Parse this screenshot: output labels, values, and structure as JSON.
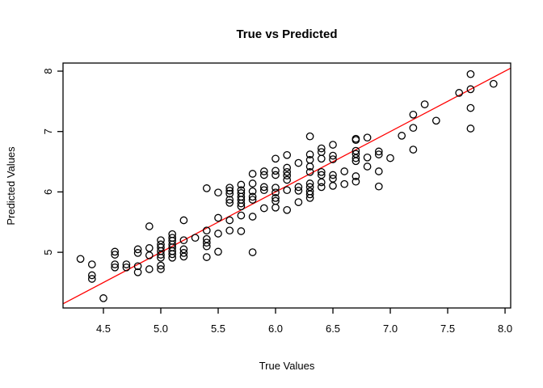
{
  "figure": {
    "background_color": "#FFFFFF",
    "foreground_color": "#000000",
    "accent_color": "#FF0000"
  },
  "chart_data": {
    "type": "scatter",
    "title": "True vs Predicted",
    "xlabel": "True Values",
    "ylabel": "Predicted Values",
    "xlim": [
      4.148,
      8.049
    ],
    "ylim": [
      4.078,
      8.134
    ],
    "x_ticks": [
      4.5,
      5.0,
      5.5,
      6.0,
      6.5,
      7.0,
      7.5,
      8.0
    ],
    "x_tick_labels": [
      "4.5",
      "5.0",
      "5.5",
      "6.0",
      "6.5",
      "7.0",
      "7.5",
      "8.0"
    ],
    "y_ticks": [
      5,
      6,
      7,
      8
    ],
    "y_tick_labels": [
      "5",
      "6",
      "7",
      "8"
    ],
    "grid": false,
    "legend": null,
    "marker": "open-circle",
    "marker_color": "#000000",
    "box": true,
    "reference_line": {
      "type": "identity",
      "slope": 1,
      "intercept": 0,
      "color": "#FF0000"
    },
    "points": [
      [
        4.3,
        4.89
      ],
      [
        4.4,
        4.8
      ],
      [
        4.4,
        4.62
      ],
      [
        4.4,
        4.56
      ],
      [
        4.5,
        4.24
      ],
      [
        4.6,
        5.01
      ],
      [
        4.6,
        4.96
      ],
      [
        4.6,
        4.8
      ],
      [
        4.6,
        4.75
      ],
      [
        4.7,
        4.8
      ],
      [
        4.7,
        4.75
      ],
      [
        4.8,
        5.05
      ],
      [
        4.8,
        4.99
      ],
      [
        4.8,
        4.77
      ],
      [
        4.8,
        4.67
      ],
      [
        4.9,
        5.43
      ],
      [
        4.9,
        5.07
      ],
      [
        4.9,
        4.95
      ],
      [
        4.9,
        4.72
      ],
      [
        5.0,
        5.2
      ],
      [
        5.0,
        5.13
      ],
      [
        5.0,
        5.08
      ],
      [
        5.0,
        5.02
      ],
      [
        5.0,
        4.96
      ],
      [
        5.0,
        4.91
      ],
      [
        5.0,
        4.78
      ],
      [
        5.0,
        4.72
      ],
      [
        5.1,
        5.3
      ],
      [
        5.1,
        5.24
      ],
      [
        5.1,
        5.19
      ],
      [
        5.1,
        5.13
      ],
      [
        5.1,
        5.08
      ],
      [
        5.1,
        5.02
      ],
      [
        5.1,
        4.97
      ],
      [
        5.1,
        4.91
      ],
      [
        5.2,
        5.53
      ],
      [
        5.2,
        5.2
      ],
      [
        5.2,
        5.05
      ],
      [
        5.2,
        4.99
      ],
      [
        5.2,
        4.93
      ],
      [
        5.3,
        5.24
      ],
      [
        5.4,
        6.06
      ],
      [
        5.4,
        5.36
      ],
      [
        5.4,
        5.22
      ],
      [
        5.4,
        5.16
      ],
      [
        5.4,
        5.1
      ],
      [
        5.4,
        4.92
      ],
      [
        5.5,
        5.99
      ],
      [
        5.5,
        5.57
      ],
      [
        5.5,
        5.31
      ],
      [
        5.5,
        5.01
      ],
      [
        5.6,
        6.07
      ],
      [
        5.6,
        6.02
      ],
      [
        5.6,
        5.97
      ],
      [
        5.6,
        5.87
      ],
      [
        5.6,
        5.82
      ],
      [
        5.6,
        5.53
      ],
      [
        5.6,
        5.36
      ],
      [
        5.7,
        6.12
      ],
      [
        5.7,
        6.03
      ],
      [
        5.7,
        5.98
      ],
      [
        5.7,
        5.92
      ],
      [
        5.7,
        5.87
      ],
      [
        5.7,
        5.81
      ],
      [
        5.7,
        5.76
      ],
      [
        5.7,
        5.61
      ],
      [
        5.7,
        5.35
      ],
      [
        5.8,
        6.3
      ],
      [
        5.8,
        6.14
      ],
      [
        5.8,
        6.01
      ],
      [
        5.8,
        5.92
      ],
      [
        5.8,
        5.87
      ],
      [
        5.8,
        5.59
      ],
      [
        5.8,
        5.0
      ],
      [
        5.9,
        6.34
      ],
      [
        5.9,
        6.28
      ],
      [
        5.9,
        6.08
      ],
      [
        5.9,
        6.03
      ],
      [
        5.9,
        5.73
      ],
      [
        6.0,
        6.55
      ],
      [
        6.0,
        6.35
      ],
      [
        6.0,
        6.28
      ],
      [
        6.0,
        6.07
      ],
      [
        6.0,
        5.99
      ],
      [
        6.0,
        5.9
      ],
      [
        6.0,
        5.85
      ],
      [
        6.0,
        5.74
      ],
      [
        6.1,
        6.61
      ],
      [
        6.1,
        6.4
      ],
      [
        6.1,
        6.33
      ],
      [
        6.1,
        6.27
      ],
      [
        6.1,
        6.2
      ],
      [
        6.1,
        6.03
      ],
      [
        6.1,
        5.7
      ],
      [
        6.2,
        6.48
      ],
      [
        6.2,
        6.08
      ],
      [
        6.2,
        6.02
      ],
      [
        6.2,
        5.83
      ],
      [
        6.3,
        6.92
      ],
      [
        6.3,
        6.62
      ],
      [
        6.3,
        6.53
      ],
      [
        6.3,
        6.42
      ],
      [
        6.3,
        6.33
      ],
      [
        6.3,
        6.14
      ],
      [
        6.3,
        6.08
      ],
      [
        6.3,
        6.01
      ],
      [
        6.3,
        5.96
      ],
      [
        6.3,
        5.9
      ],
      [
        6.4,
        6.72
      ],
      [
        6.4,
        6.66
      ],
      [
        6.4,
        6.55
      ],
      [
        6.4,
        6.33
      ],
      [
        6.4,
        6.28
      ],
      [
        6.4,
        6.16
      ],
      [
        6.4,
        6.08
      ],
      [
        6.5,
        6.78
      ],
      [
        6.5,
        6.6
      ],
      [
        6.5,
        6.54
      ],
      [
        6.5,
        6.28
      ],
      [
        6.5,
        6.22
      ],
      [
        6.5,
        6.1
      ],
      [
        6.6,
        6.34
      ],
      [
        6.6,
        6.13
      ],
      [
        6.7,
        6.88
      ],
      [
        6.7,
        6.86
      ],
      [
        6.7,
        6.68
      ],
      [
        6.7,
        6.63
      ],
      [
        6.7,
        6.56
      ],
      [
        6.7,
        6.51
      ],
      [
        6.7,
        6.26
      ],
      [
        6.7,
        6.17
      ],
      [
        6.8,
        6.9
      ],
      [
        6.8,
        6.57
      ],
      [
        6.8,
        6.42
      ],
      [
        6.9,
        6.67
      ],
      [
        6.9,
        6.62
      ],
      [
        6.9,
        6.34
      ],
      [
        6.9,
        6.09
      ],
      [
        7.0,
        6.56
      ],
      [
        7.1,
        6.93
      ],
      [
        7.2,
        7.28
      ],
      [
        7.2,
        7.06
      ],
      [
        7.2,
        6.7
      ],
      [
        7.3,
        7.45
      ],
      [
        7.4,
        7.18
      ],
      [
        7.6,
        7.64
      ],
      [
        7.7,
        7.95
      ],
      [
        7.7,
        7.7
      ],
      [
        7.7,
        7.39
      ],
      [
        7.7,
        7.05
      ],
      [
        7.9,
        7.79
      ]
    ]
  }
}
